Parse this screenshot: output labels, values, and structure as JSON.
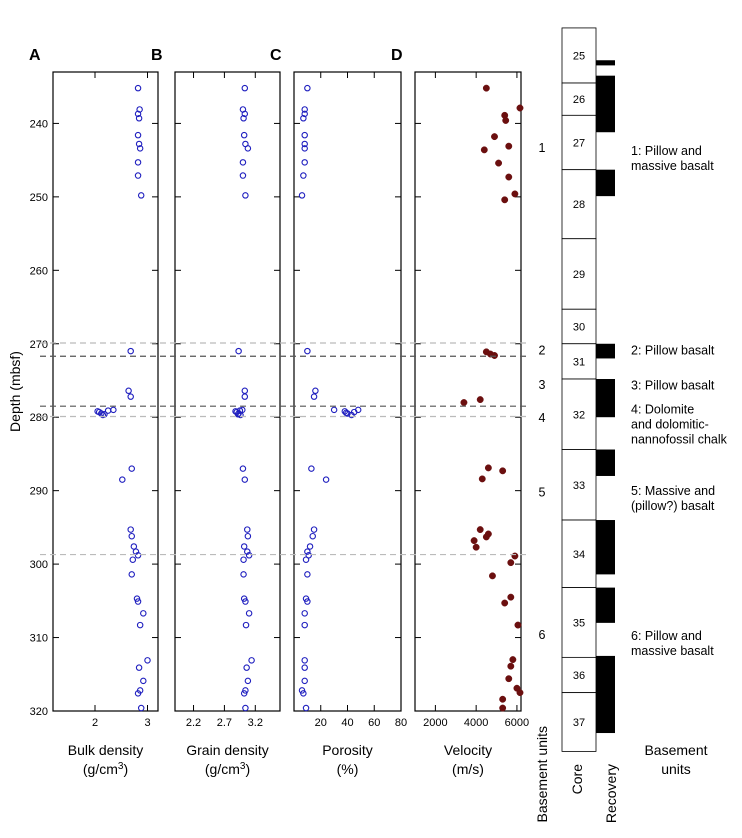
{
  "chart_data": {
    "type": "scatter",
    "y_axis": {
      "label": "Depth (mbsf)",
      "range": [
        233,
        320
      ],
      "ticks": [
        240,
        250,
        260,
        270,
        280,
        290,
        300,
        310,
        320
      ],
      "inverted": true
    },
    "panels": [
      {
        "letter": "A",
        "xlabel_line1": "Bulk density",
        "xlabel_line2_pre": "(g/cm",
        "xlabel_sup": "3",
        "xlabel_line2_post": ")",
        "xlim": [
          1.2,
          3.2
        ],
        "xticks": [
          "2",
          "3"
        ],
        "xtick_values": [
          2,
          3
        ],
        "marker": "open-circle",
        "color": "#1f1fbf",
        "points": [
          [
            2.82,
            235.2
          ],
          [
            2.85,
            238.1
          ],
          [
            2.82,
            238.7
          ],
          [
            2.84,
            239.3
          ],
          [
            2.82,
            241.6
          ],
          [
            2.84,
            242.8
          ],
          [
            2.86,
            243.4
          ],
          [
            2.82,
            245.3
          ],
          [
            2.82,
            247.1
          ],
          [
            2.88,
            249.8
          ],
          [
            2.68,
            271.0
          ],
          [
            2.64,
            276.4
          ],
          [
            2.68,
            277.2
          ],
          [
            2.05,
            279.2
          ],
          [
            2.12,
            279.5
          ],
          [
            2.15,
            279.7
          ],
          [
            2.18,
            279.6
          ],
          [
            2.08,
            279.3
          ],
          [
            2.25,
            279.1
          ],
          [
            2.35,
            279.0
          ],
          [
            2.7,
            287.0
          ],
          [
            2.52,
            288.5
          ],
          [
            2.68,
            295.3
          ],
          [
            2.7,
            296.2
          ],
          [
            2.74,
            297.6
          ],
          [
            2.78,
            298.3
          ],
          [
            2.82,
            298.8
          ],
          [
            2.72,
            299.4
          ],
          [
            2.7,
            301.4
          ],
          [
            2.8,
            304.7
          ],
          [
            2.82,
            305.1
          ],
          [
            2.92,
            306.7
          ],
          [
            2.86,
            308.3
          ],
          [
            3.0,
            313.1
          ],
          [
            2.84,
            314.1
          ],
          [
            2.92,
            315.9
          ],
          [
            2.86,
            317.2
          ],
          [
            2.82,
            317.6
          ],
          [
            2.88,
            319.6
          ]
        ]
      },
      {
        "letter": "B",
        "xlabel_line1": "Grain density",
        "xlabel_line2_pre": "(g/cm",
        "xlabel_sup": "3",
        "xlabel_line2_post": ")",
        "xlim": [
          1.9,
          3.6
        ],
        "xticks": [
          "2.2",
          "2.7",
          "3.2"
        ],
        "xtick_values": [
          2.2,
          2.7,
          3.2
        ],
        "marker": "open-circle",
        "color": "#1f1fbf",
        "points": [
          [
            3.03,
            235.2
          ],
          [
            3.0,
            238.1
          ],
          [
            3.03,
            238.7
          ],
          [
            3.01,
            239.3
          ],
          [
            3.02,
            241.6
          ],
          [
            3.04,
            242.8
          ],
          [
            3.08,
            243.4
          ],
          [
            3.0,
            245.3
          ],
          [
            3.0,
            247.1
          ],
          [
            3.04,
            249.8
          ],
          [
            2.93,
            271.0
          ],
          [
            3.03,
            276.4
          ],
          [
            3.03,
            277.2
          ],
          [
            2.88,
            279.2
          ],
          [
            2.93,
            279.5
          ],
          [
            2.96,
            279.7
          ],
          [
            2.92,
            279.6
          ],
          [
            2.9,
            279.3
          ],
          [
            2.95,
            279.1
          ],
          [
            2.99,
            279.0
          ],
          [
            3.0,
            287.0
          ],
          [
            3.03,
            288.5
          ],
          [
            3.07,
            295.3
          ],
          [
            3.08,
            296.2
          ],
          [
            3.02,
            297.6
          ],
          [
            3.07,
            298.3
          ],
          [
            3.1,
            298.8
          ],
          [
            3.01,
            299.4
          ],
          [
            3.01,
            301.4
          ],
          [
            3.02,
            304.7
          ],
          [
            3.04,
            305.1
          ],
          [
            3.1,
            306.7
          ],
          [
            3.05,
            308.3
          ],
          [
            3.14,
            313.1
          ],
          [
            3.06,
            314.1
          ],
          [
            3.08,
            315.9
          ],
          [
            3.04,
            317.2
          ],
          [
            3.02,
            317.6
          ],
          [
            3.04,
            319.6
          ]
        ]
      },
      {
        "letter": "C",
        "xlabel_line1": "Porosity",
        "xlabel_line2_pre": "(%)",
        "xlabel_sup": "",
        "xlabel_line2_post": "",
        "xlim": [
          0,
          80
        ],
        "xticks": [
          "20",
          "40",
          "60",
          "80"
        ],
        "xtick_values": [
          20,
          40,
          60,
          80
        ],
        "marker": "open-circle",
        "color": "#1f1fbf",
        "points": [
          [
            10,
            235.2
          ],
          [
            8,
            238.1
          ],
          [
            8,
            238.7
          ],
          [
            7,
            239.3
          ],
          [
            8,
            241.6
          ],
          [
            8,
            242.8
          ],
          [
            8,
            243.4
          ],
          [
            8,
            245.3
          ],
          [
            7,
            247.1
          ],
          [
            6,
            249.8
          ],
          [
            10,
            271.0
          ],
          [
            16,
            276.4
          ],
          [
            15,
            277.2
          ],
          [
            30,
            279.0
          ],
          [
            38,
            279.2
          ],
          [
            40,
            279.5
          ],
          [
            43,
            279.7
          ],
          [
            45,
            279.3
          ],
          [
            48,
            279.0
          ],
          [
            39,
            279.4
          ],
          [
            13,
            287.0
          ],
          [
            24,
            288.5
          ],
          [
            15,
            295.3
          ],
          [
            14,
            296.2
          ],
          [
            12,
            297.6
          ],
          [
            10,
            298.3
          ],
          [
            11,
            298.8
          ],
          [
            9,
            299.4
          ],
          [
            10,
            301.4
          ],
          [
            9,
            304.7
          ],
          [
            10,
            305.1
          ],
          [
            8,
            306.7
          ],
          [
            8,
            308.3
          ],
          [
            8,
            313.1
          ],
          [
            8,
            314.1
          ],
          [
            8,
            315.9
          ],
          [
            6,
            317.2
          ],
          [
            7,
            317.6
          ],
          [
            9,
            319.6
          ]
        ]
      },
      {
        "letter": "D",
        "xlabel_line1": "Velocity",
        "xlabel_line2_pre": "(m/s)",
        "xlabel_sup": "",
        "xlabel_line2_post": "",
        "xlim": [
          1000,
          6200
        ],
        "xticks": [
          "2000",
          "4000",
          "6000"
        ],
        "xtick_values": [
          2000,
          4000,
          6000
        ],
        "marker": "filled-circle",
        "color": "#6b0f0f",
        "points": [
          [
            4500,
            235.2
          ],
          [
            6150,
            237.9
          ],
          [
            5400,
            238.9
          ],
          [
            5450,
            239.6
          ],
          [
            4900,
            241.8
          ],
          [
            5600,
            243.1
          ],
          [
            4400,
            243.6
          ],
          [
            5100,
            245.4
          ],
          [
            5600,
            247.3
          ],
          [
            5900,
            249.6
          ],
          [
            5400,
            250.4
          ],
          [
            4500,
            271.1
          ],
          [
            4700,
            271.4
          ],
          [
            4900,
            271.6
          ],
          [
            4200,
            277.6
          ],
          [
            3400,
            278.0
          ],
          [
            4600,
            286.9
          ],
          [
            5300,
            287.3
          ],
          [
            4300,
            288.4
          ],
          [
            4200,
            295.3
          ],
          [
            4600,
            295.9
          ],
          [
            4500,
            296.3
          ],
          [
            3900,
            296.8
          ],
          [
            4000,
            297.7
          ],
          [
            5900,
            298.9
          ],
          [
            5700,
            299.8
          ],
          [
            4800,
            301.6
          ],
          [
            5700,
            304.5
          ],
          [
            5400,
            305.3
          ],
          [
            6050,
            308.3
          ],
          [
            5800,
            313.0
          ],
          [
            5700,
            313.9
          ],
          [
            5600,
            315.6
          ],
          [
            6000,
            316.9
          ],
          [
            6150,
            317.5
          ],
          [
            5300,
            318.4
          ],
          [
            5300,
            319.6
          ]
        ]
      }
    ],
    "dashed_depths": [
      {
        "depth": 269.9,
        "color": "#bbbbbb"
      },
      {
        "depth": 271.7,
        "color": "#555555"
      },
      {
        "depth": 278.5,
        "color": "#555555"
      },
      {
        "depth": 279.9,
        "color": "#bbbbbb"
      },
      {
        "depth": 298.7,
        "color": "#bbbbbb"
      }
    ],
    "basement_unit_labels": [
      {
        "text": "1",
        "depth": 243.2
      },
      {
        "text": "2",
        "depth": 270.8
      },
      {
        "text": "3",
        "depth": 275.5
      },
      {
        "text": "4",
        "depth": 280.0
      },
      {
        "text": "5",
        "depth": 290.1
      },
      {
        "text": "6",
        "depth": 309.5
      }
    ],
    "cores": [
      {
        "label": "25",
        "top": 227.0,
        "bottom": 234.5
      },
      {
        "label": "26",
        "top": 234.5,
        "bottom": 238.9
      },
      {
        "label": "27",
        "top": 238.9,
        "bottom": 246.3
      },
      {
        "label": "28",
        "top": 246.3,
        "bottom": 255.7
      },
      {
        "label": "29",
        "top": 255.7,
        "bottom": 265.3
      },
      {
        "label": "30",
        "top": 265.3,
        "bottom": 270.0
      },
      {
        "label": "31",
        "top": 270.0,
        "bottom": 274.8
      },
      {
        "label": "32",
        "top": 274.8,
        "bottom": 284.4
      },
      {
        "label": "33",
        "top": 284.4,
        "bottom": 294.0
      },
      {
        "label": "34",
        "top": 294.0,
        "bottom": 303.2
      },
      {
        "label": "35",
        "top": 303.2,
        "bottom": 312.7
      },
      {
        "label": "36",
        "top": 312.7,
        "bottom": 317.5
      },
      {
        "label": "37",
        "top": 317.5,
        "bottom": 325.5
      }
    ],
    "recovery_intervals": [
      [
        231.4,
        232.1
      ],
      [
        233.5,
        241.2
      ],
      [
        246.3,
        249.9
      ],
      [
        270.0,
        272.0
      ],
      [
        274.8,
        280.0
      ],
      [
        284.4,
        288.0
      ],
      [
        294.0,
        301.4
      ],
      [
        303.2,
        308.0
      ],
      [
        312.5,
        323.0
      ]
    ],
    "unit_descriptions": [
      {
        "lines": [
          "1: Pillow and",
          "massive basalt"
        ],
        "depth": 244.8
      },
      {
        "lines": [
          "2: Pillow basalt"
        ],
        "depth": 270.9
      },
      {
        "lines": [
          "3: Pillow basalt"
        ],
        "depth": 275.7
      },
      {
        "lines": [
          "4: Dolomite",
          "and dolomitic-",
          "nannofossil chalk"
        ],
        "depth": 281.0
      },
      {
        "lines": [
          "5: Massive and",
          "(pillow?) basalt"
        ],
        "depth": 291.1
      },
      {
        "lines": [
          "6: Pillow and",
          "massive basalt"
        ],
        "depth": 310.8
      }
    ],
    "bottom_labels": {
      "basement_units_vertical": "Basement units",
      "core": "Core",
      "recovery": "Recovery",
      "basement_units_line1": "Basement",
      "basement_units_line2": "units"
    }
  }
}
